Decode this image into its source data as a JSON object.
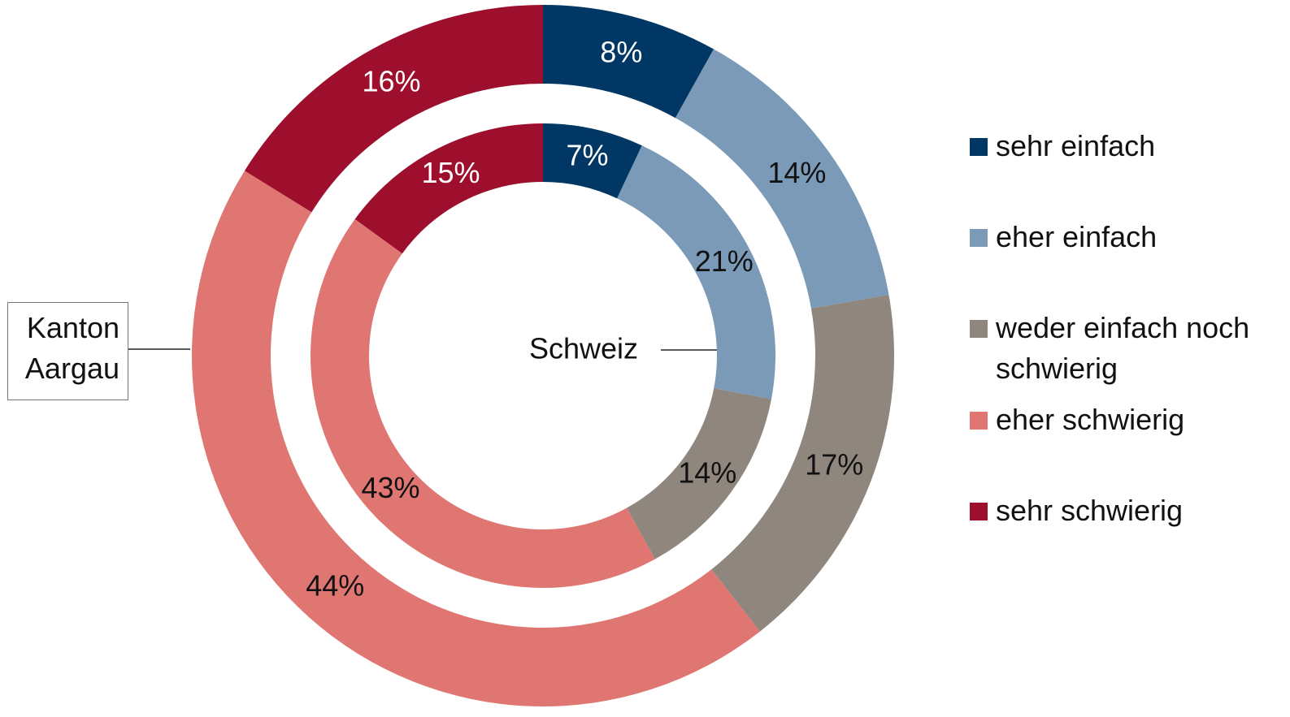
{
  "chart_data": {
    "type": "pie",
    "categories": [
      "sehr einfach",
      "eher einfach",
      "weder einfach noch schwierig",
      "eher schwierig",
      "sehr schwierig"
    ],
    "colors": [
      "#003764",
      "#7a9ab7",
      "#8f877d",
      "#e07672",
      "#9e0f2e"
    ],
    "series": [
      {
        "name": "Kanton Aargau",
        "values": [
          8,
          14,
          17,
          44,
          16
        ],
        "value_labels": [
          "8%",
          "14%",
          "17%",
          "44%",
          "16%"
        ]
      },
      {
        "name": "Schweiz",
        "values": [
          7,
          21,
          14,
          43,
          15
        ],
        "value_labels": [
          "7%",
          "21%",
          "14%",
          "43%",
          "15%"
        ]
      }
    ],
    "legend": "right"
  }
}
